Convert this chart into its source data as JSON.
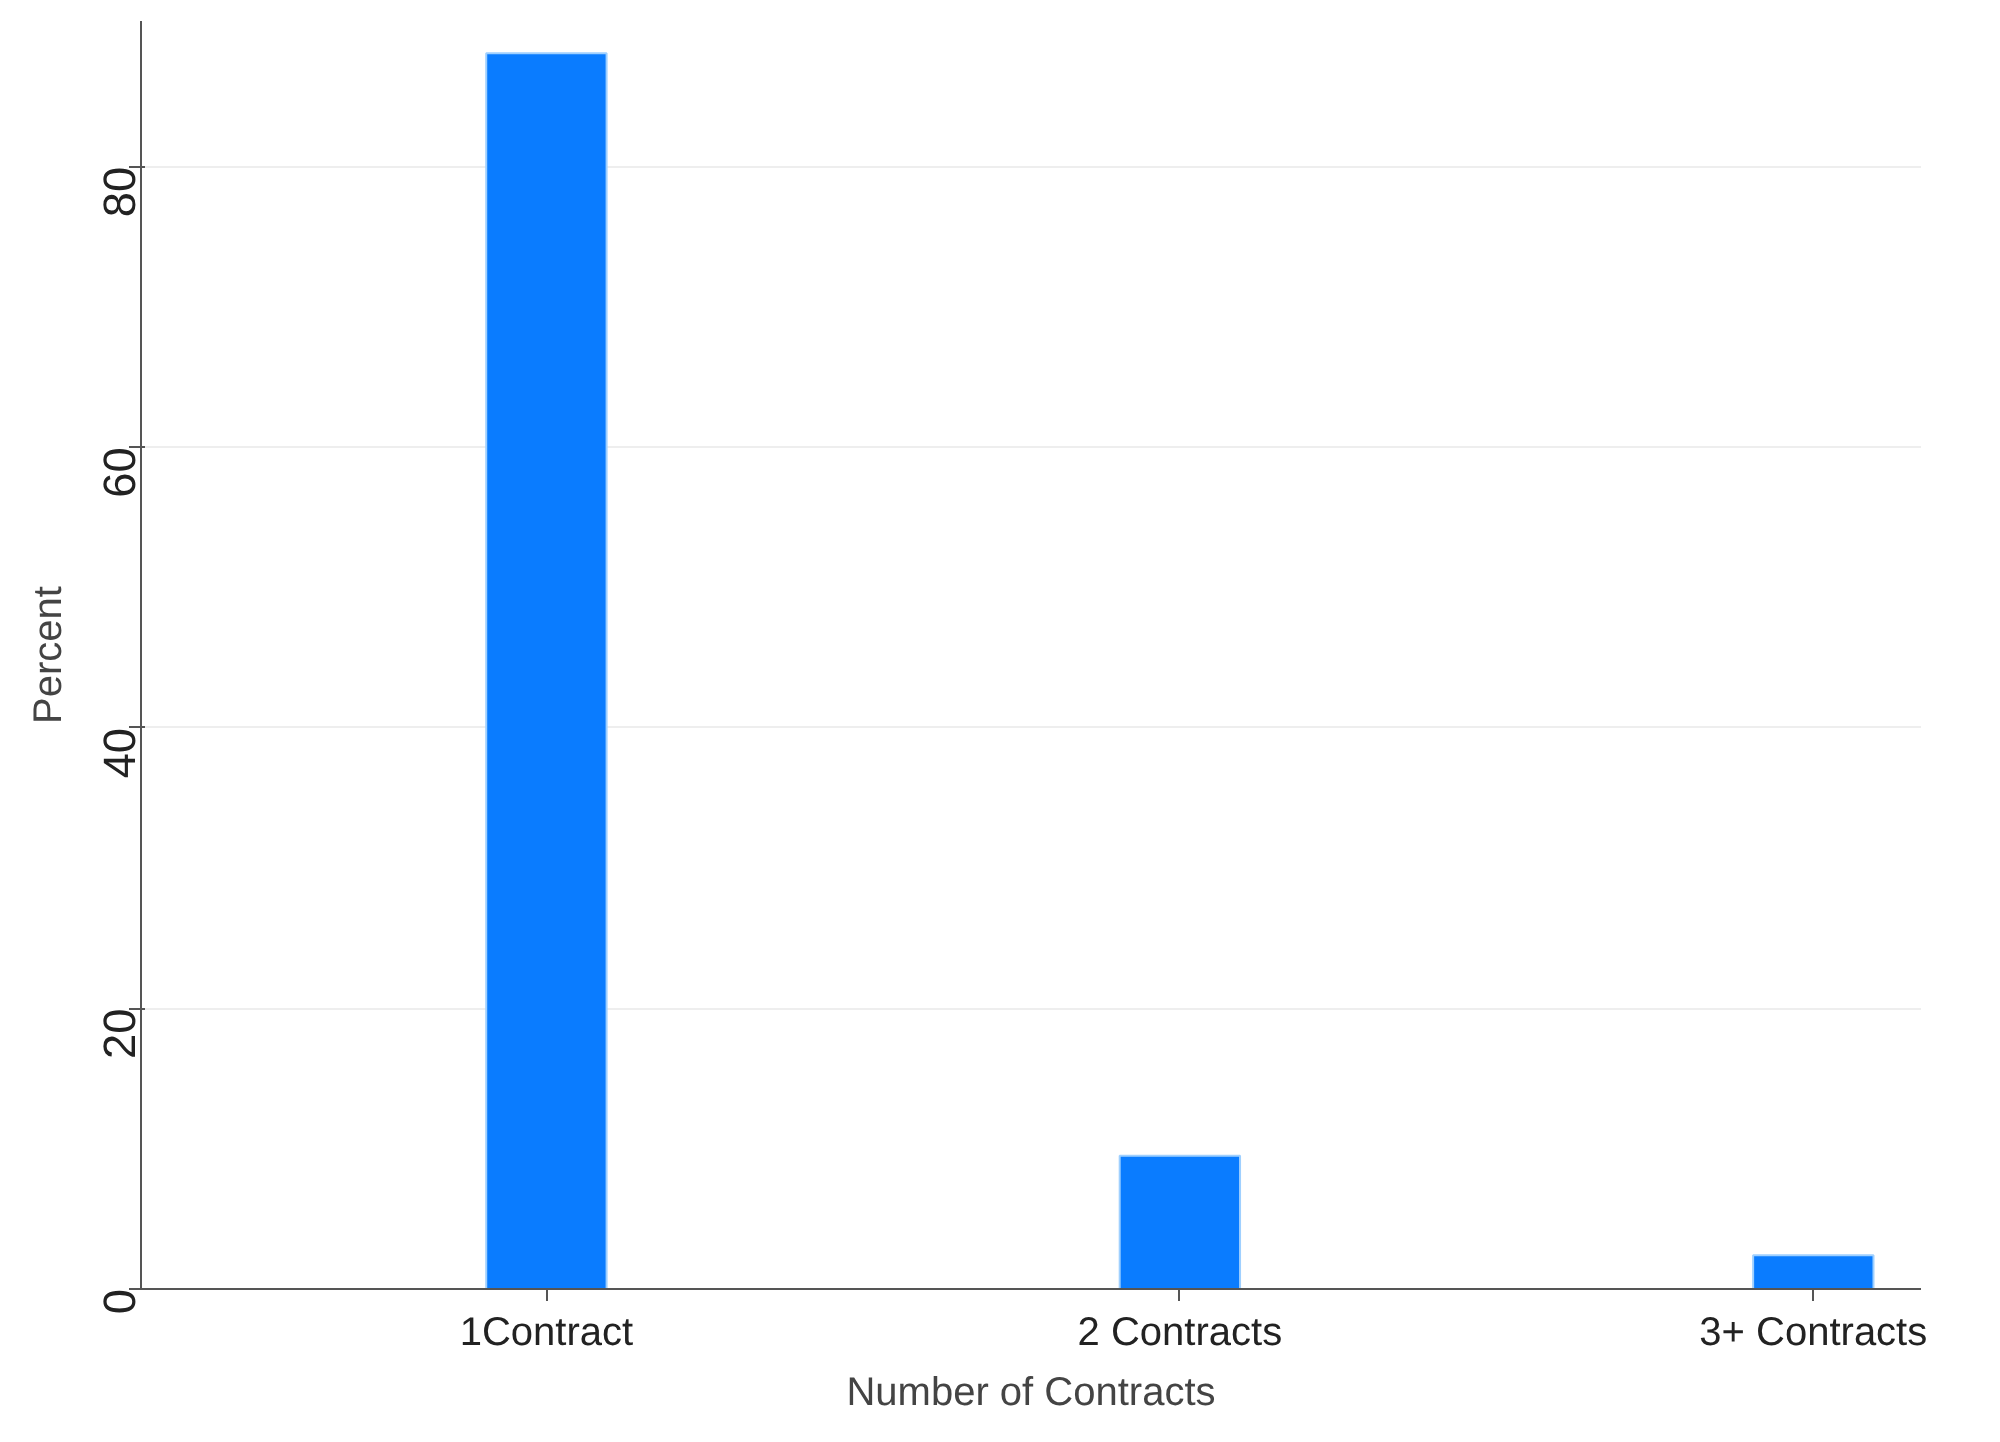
{
  "chart_data": {
    "type": "bar",
    "xlabel": "Number of Contracts",
    "ylabel": "Percent",
    "categories": [
      "1Contract",
      "2 Contracts",
      "3+ Contracts"
    ],
    "values": [
      88.1,
      9.5,
      2.4
    ],
    "color": "#0a7cff",
    "ylim": [
      0,
      90.4
    ],
    "yticks": [
      0,
      20,
      40,
      60,
      80
    ],
    "grid": "y"
  }
}
